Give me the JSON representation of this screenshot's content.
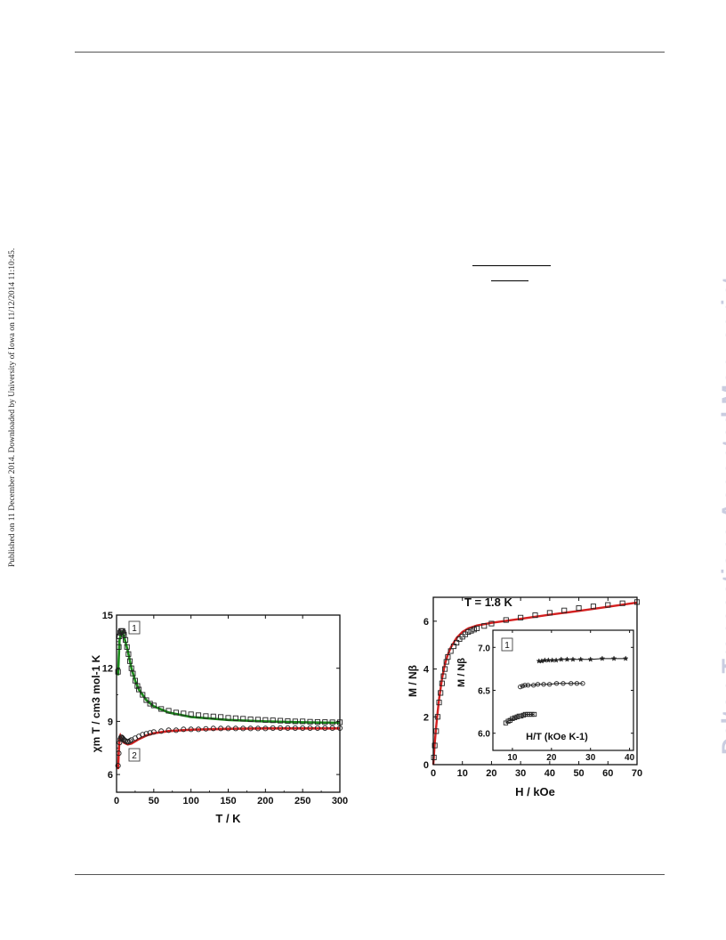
{
  "side_left_text": "Published on 11 December 2014. Downloaded by University of Iowa on 11/12/2014 11:10:45.",
  "side_right_text": "Dalton Transactions Accepted Manuscript",
  "chart_data": [
    {
      "type": "scatter",
      "title": "",
      "xlabel": "T / K",
      "ylabel": "χm T / cm3 mol-1 K",
      "xlim": [
        0,
        300
      ],
      "ylim": [
        5,
        15
      ],
      "xticks": [
        "0",
        "50",
        "100",
        "150",
        "200",
        "250",
        "300"
      ],
      "yticks": [
        "6",
        "9",
        "12",
        "15"
      ],
      "annotations": [
        "1",
        "2"
      ],
      "series": [
        {
          "marker": "square",
          "fit_color": "#1a8a1a",
          "points": [
            [
              2,
              11.8
            ],
            [
              3,
              13.2
            ],
            [
              4,
              13.8
            ],
            [
              5,
              14.0
            ],
            [
              6,
              14.1
            ],
            [
              7,
              14.1
            ],
            [
              8,
              14.1
            ],
            [
              9,
              14.0
            ],
            [
              10,
              13.9
            ],
            [
              12,
              13.6
            ],
            [
              14,
              13.2
            ],
            [
              16,
              12.8
            ],
            [
              18,
              12.4
            ],
            [
              20,
              12.0
            ],
            [
              22,
              11.7
            ],
            [
              25,
              11.3
            ],
            [
              28,
              11.0
            ],
            [
              30,
              10.8
            ],
            [
              35,
              10.5
            ],
            [
              40,
              10.2
            ],
            [
              45,
              10.0
            ],
            [
              50,
              9.9
            ],
            [
              60,
              9.7
            ],
            [
              70,
              9.6
            ],
            [
              80,
              9.5
            ],
            [
              90,
              9.45
            ],
            [
              100,
              9.4
            ],
            [
              110,
              9.35
            ],
            [
              120,
              9.3
            ],
            [
              130,
              9.28
            ],
            [
              140,
              9.25
            ],
            [
              150,
              9.2
            ],
            [
              160,
              9.18
            ],
            [
              170,
              9.15
            ],
            [
              180,
              9.12
            ],
            [
              190,
              9.1
            ],
            [
              200,
              9.08
            ],
            [
              210,
              9.06
            ],
            [
              220,
              9.04
            ],
            [
              230,
              9.02
            ],
            [
              240,
              9.0
            ],
            [
              250,
              9.0
            ],
            [
              260,
              8.98
            ],
            [
              270,
              8.97
            ],
            [
              280,
              8.96
            ],
            [
              290,
              8.95
            ],
            [
              300,
              8.95
            ]
          ],
          "fit": [
            [
              2,
              11.6
            ],
            [
              4,
              13.6
            ],
            [
              6,
              14.0
            ],
            [
              8,
              14.05
            ],
            [
              10,
              13.8
            ],
            [
              15,
              13.0
            ],
            [
              20,
              12.0
            ],
            [
              25,
              11.3
            ],
            [
              30,
              10.8
            ],
            [
              40,
              10.2
            ],
            [
              50,
              9.85
            ],
            [
              70,
              9.5
            ],
            [
              100,
              9.25
            ],
            [
              150,
              9.08
            ],
            [
              200,
              9.0
            ],
            [
              250,
              8.95
            ],
            [
              300,
              8.92
            ]
          ]
        },
        {
          "marker": "circle",
          "fit_color": "#d42020",
          "points": [
            [
              2,
              6.5
            ],
            [
              3,
              7.2
            ],
            [
              4,
              7.8
            ],
            [
              5,
              8.0
            ],
            [
              6,
              8.1
            ],
            [
              7,
              8.1
            ],
            [
              8,
              8.05
            ],
            [
              9,
              8.0
            ],
            [
              10,
              7.95
            ],
            [
              12,
              7.9
            ],
            [
              14,
              7.85
            ],
            [
              16,
              7.85
            ],
            [
              18,
              7.9
            ],
            [
              20,
              7.95
            ],
            [
              25,
              8.05
            ],
            [
              30,
              8.15
            ],
            [
              35,
              8.25
            ],
            [
              40,
              8.3
            ],
            [
              45,
              8.35
            ],
            [
              50,
              8.4
            ],
            [
              60,
              8.45
            ],
            [
              70,
              8.5
            ],
            [
              80,
              8.5
            ],
            [
              90,
              8.55
            ],
            [
              100,
              8.55
            ],
            [
              110,
              8.55
            ],
            [
              120,
              8.58
            ],
            [
              130,
              8.6
            ],
            [
              140,
              8.6
            ],
            [
              150,
              8.6
            ],
            [
              160,
              8.6
            ],
            [
              170,
              8.6
            ],
            [
              180,
              8.6
            ],
            [
              190,
              8.6
            ],
            [
              200,
              8.6
            ],
            [
              210,
              8.62
            ],
            [
              220,
              8.62
            ],
            [
              230,
              8.62
            ],
            [
              240,
              8.62
            ],
            [
              250,
              8.62
            ],
            [
              260,
              8.62
            ],
            [
              270,
              8.62
            ],
            [
              280,
              8.62
            ],
            [
              290,
              8.62
            ],
            [
              300,
              8.62
            ]
          ],
          "fit": [
            [
              2,
              6.3
            ],
            [
              3,
              7.3
            ],
            [
              4,
              8.1
            ],
            [
              5,
              8.2
            ],
            [
              6,
              8.1
            ],
            [
              8,
              7.9
            ],
            [
              10,
              7.8
            ],
            [
              15,
              7.7
            ],
            [
              20,
              7.75
            ],
            [
              30,
              8.0
            ],
            [
              40,
              8.2
            ],
            [
              50,
              8.33
            ],
            [
              70,
              8.45
            ],
            [
              100,
              8.53
            ],
            [
              150,
              8.58
            ],
            [
              200,
              8.6
            ],
            [
              250,
              8.6
            ],
            [
              300,
              8.6
            ]
          ]
        }
      ]
    },
    {
      "type": "scatter",
      "title": "T = 1.8 K",
      "xlabel": "H / kOe",
      "ylabel": "M / Nβ",
      "xlim": [
        0,
        70
      ],
      "ylim": [
        0,
        7
      ],
      "xticks": [
        "0",
        "10",
        "20",
        "30",
        "40",
        "50",
        "60",
        "70"
      ],
      "yticks": [
        "0",
        "2",
        "4",
        "6"
      ],
      "series": [
        {
          "marker": "square",
          "fit_color": "#d42020",
          "points": [
            [
              0.2,
              0.3
            ],
            [
              0.5,
              0.8
            ],
            [
              1,
              1.4
            ],
            [
              1.5,
              2.0
            ],
            [
              2,
              2.6
            ],
            [
              2.5,
              3.0
            ],
            [
              3,
              3.4
            ],
            [
              3.5,
              3.7
            ],
            [
              4,
              4.0
            ],
            [
              4.5,
              4.3
            ],
            [
              5,
              4.5
            ],
            [
              6,
              4.75
            ],
            [
              7,
              4.95
            ],
            [
              8,
              5.1
            ],
            [
              9,
              5.25
            ],
            [
              10,
              5.35
            ],
            [
              11,
              5.45
            ],
            [
              12,
              5.55
            ],
            [
              13,
              5.6
            ],
            [
              14,
              5.65
            ],
            [
              15,
              5.7
            ],
            [
              17.5,
              5.8
            ],
            [
              20,
              5.9
            ],
            [
              25,
              6.05
            ],
            [
              30,
              6.15
            ],
            [
              35,
              6.25
            ],
            [
              40,
              6.35
            ],
            [
              45,
              6.45
            ],
            [
              50,
              6.55
            ],
            [
              55,
              6.62
            ],
            [
              60,
              6.68
            ],
            [
              65,
              6.75
            ],
            [
              70,
              6.8
            ]
          ],
          "fit": [
            [
              0,
              0
            ],
            [
              0.5,
              0.9
            ],
            [
              1,
              1.6
            ],
            [
              1.5,
              2.2
            ],
            [
              2,
              2.75
            ],
            [
              3,
              3.6
            ],
            [
              4,
              4.2
            ],
            [
              5,
              4.6
            ],
            [
              6,
              4.9
            ],
            [
              8,
              5.3
            ],
            [
              10,
              5.55
            ],
            [
              12,
              5.7
            ],
            [
              15,
              5.82
            ],
            [
              20,
              5.93
            ],
            [
              30,
              6.1
            ],
            [
              40,
              6.27
            ],
            [
              50,
              6.43
            ],
            [
              60,
              6.6
            ],
            [
              70,
              6.78
            ]
          ]
        }
      ],
      "inset": {
        "type": "scatter",
        "xlabel": "H/T (kOe K-1)",
        "ylabel": "M / Nβ",
        "xlim": [
          5,
          41
        ],
        "ylim": [
          5.8,
          7.2
        ],
        "xticks": [
          "10",
          "20",
          "30",
          "40"
        ],
        "yticks": [
          "6.0",
          "6.5",
          "7.0"
        ],
        "annotation": "1",
        "series": [
          {
            "marker": "square",
            "points": [
              [
                8.3,
                6.12
              ],
              [
                8.9,
                6.14
              ],
              [
                9.4,
                6.15
              ],
              [
                10,
                6.17
              ],
              [
                10.6,
                6.18
              ],
              [
                11.2,
                6.19
              ],
              [
                11.7,
                6.2
              ],
              [
                12.2,
                6.2
              ],
              [
                12.8,
                6.21
              ],
              [
                13.3,
                6.22
              ],
              [
                13.9,
                6.22
              ],
              [
                14.4,
                6.22
              ],
              [
                15,
                6.22
              ],
              [
                15.6,
                6.22
              ]
            ]
          },
          {
            "marker": "circle",
            "points": [
              [
                12,
                6.54
              ],
              [
                12.6,
                6.55
              ],
              [
                13.2,
                6.56
              ],
              [
                14,
                6.56
              ],
              [
                15.4,
                6.56
              ],
              [
                16.5,
                6.57
              ],
              [
                18,
                6.57
              ],
              [
                19.5,
                6.57
              ],
              [
                21.3,
                6.58
              ],
              [
                23,
                6.58
              ],
              [
                25,
                6.58
              ],
              [
                26.5,
                6.58
              ],
              [
                28,
                6.58
              ]
            ]
          },
          {
            "marker": "star",
            "points": [
              [
                16.8,
                6.84
              ],
              [
                17.5,
                6.84
              ],
              [
                18.3,
                6.85
              ],
              [
                19.2,
                6.85
              ],
              [
                20.2,
                6.85
              ],
              [
                21.2,
                6.85
              ],
              [
                22.5,
                6.86
              ],
              [
                24,
                6.86
              ],
              [
                25.5,
                6.86
              ],
              [
                27.5,
                6.86
              ],
              [
                30,
                6.86
              ],
              [
                33,
                6.87
              ],
              [
                36,
                6.87
              ],
              [
                39,
                6.87
              ]
            ]
          }
        ]
      }
    }
  ]
}
